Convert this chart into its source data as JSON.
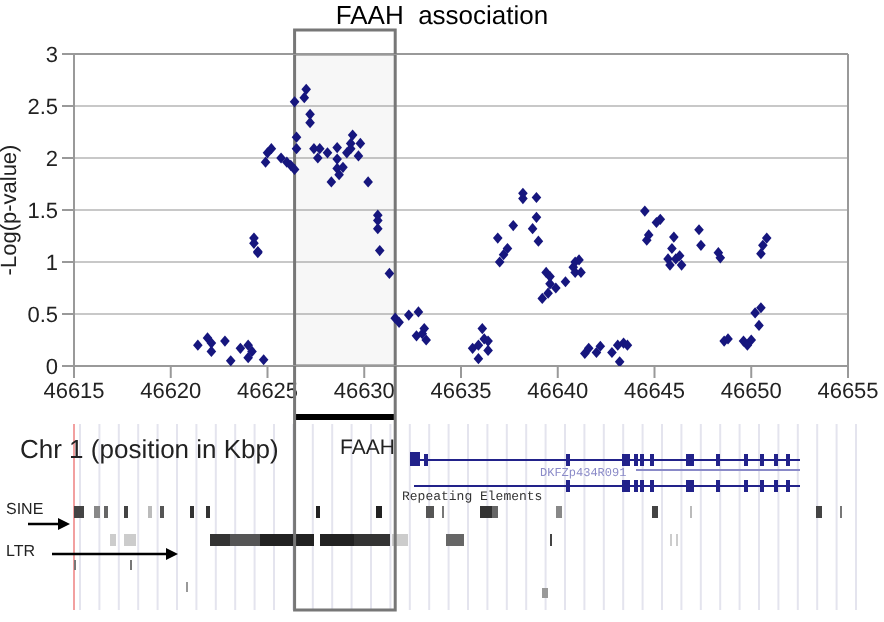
{
  "chart_data": {
    "type": "scatter",
    "title": "FAAH  association",
    "ylabel": "-Log(p-value)",
    "x": [
      46621.4,
      46621.9,
      46622.1,
      46622.1,
      46622.8,
      46623.1,
      46623.6,
      46624.0,
      46624.2,
      46624.0,
      46624.3,
      46624.3,
      46624.5,
      46624.5,
      46624.8,
      46624.9,
      46625.0,
      46625.2,
      46625.7,
      46626.0,
      46626.2,
      46626.4,
      46626.4,
      46626.5,
      46626.5,
      46626.9,
      46627.0,
      46627.2,
      46627.2,
      46627.4,
      46627.6,
      46627.7,
      46628.1,
      46628.3,
      46628.6,
      46628.6,
      46628.6,
      46628.7,
      46628.9,
      46629.1,
      46629.3,
      46629.4,
      46629.3,
      46629.7,
      46629.8,
      46630.2,
      46630.7,
      46630.7,
      46630.7,
      46630.8,
      46631.3,
      46631.6,
      46631.8,
      46632.3,
      46632.8,
      46632.7,
      46633.0,
      46633.1,
      46633.2,
      46635.6,
      46635.9,
      46635.9,
      46636.1,
      46636.2,
      46636.4,
      46636.4,
      46636.9,
      46637.0,
      46637.2,
      46637.4,
      46637.7,
      46638.2,
      46638.2,
      46638.7,
      46638.9,
      46638.9,
      46639.0,
      46639.2,
      46639.4,
      46639.5,
      46639.6,
      46639.6,
      46639.9,
      46640.4,
      46640.8,
      46640.9,
      46641.1,
      46640.9,
      46641.2,
      46641.4,
      46641.6,
      46642.0,
      46642.2,
      46642.8,
      46643.1,
      46643.2,
      46643.4,
      46643.6,
      46644.5,
      46644.6,
      46644.7,
      46645.1,
      46645.3,
      46645.7,
      46645.8,
      46645.9,
      46646.0,
      46646.1,
      46646.3,
      46646.4,
      46647.3,
      46647.4,
      46648.3,
      46648.4,
      46648.6,
      46648.8,
      46649.6,
      46649.8,
      46650.0,
      46650.2,
      46650.5,
      46650.4,
      46650.5,
      46650.6,
      46650.8
    ],
    "values": [
      0.2,
      0.27,
      0.22,
      0.14,
      0.24,
      0.05,
      0.17,
      0.2,
      0.14,
      0.08,
      1.23,
      1.18,
      1.1,
      1.09,
      0.06,
      1.96,
      2.05,
      2.09,
      2.0,
      1.96,
      1.93,
      1.89,
      2.54,
      2.2,
      2.09,
      2.58,
      2.66,
      2.42,
      2.34,
      2.09,
      2.0,
      2.09,
      2.05,
      1.77,
      2.1,
      1.99,
      1.9,
      1.84,
      1.91,
      2.05,
      2.14,
      2.22,
      2.09,
      2.02,
      2.14,
      1.77,
      1.45,
      1.4,
      1.32,
      1.11,
      0.89,
      0.46,
      0.42,
      0.49,
      0.52,
      0.29,
      0.31,
      0.36,
      0.25,
      0.17,
      0.2,
      0.07,
      0.36,
      0.26,
      0.24,
      0.15,
      1.23,
      1.0,
      1.07,
      1.13,
      1.35,
      1.61,
      1.66,
      1.32,
      1.43,
      1.62,
      1.2,
      0.65,
      0.9,
      0.7,
      0.79,
      0.86,
      0.75,
      0.81,
      0.95,
      1.0,
      1.02,
      0.9,
      0.9,
      0.12,
      0.17,
      0.13,
      0.19,
      0.13,
      0.2,
      0.04,
      0.22,
      0.2,
      1.49,
      1.21,
      1.26,
      1.38,
      1.41,
      1.03,
      0.97,
      1.13,
      1.24,
      1.03,
      1.06,
      0.97,
      1.31,
      1.16,
      1.09,
      1.04,
      0.24,
      0.26,
      0.24,
      0.2,
      0.25,
      0.51,
      0.56,
      0.39,
      1.08,
      1.16,
      1.23
    ],
    "color": "#16167e",
    "marker": "diamond",
    "xlim": [
      46615,
      46655
    ],
    "xticks": [
      46615,
      46620,
      46625,
      46630,
      46635,
      46640,
      46645,
      46650,
      46655
    ],
    "ylim": [
      0,
      3
    ],
    "yticks": [
      0,
      0.5,
      1,
      1.5,
      2,
      2.5,
      3
    ],
    "grid": "y",
    "bands": [
      {
        "axis": "x",
        "from": 46626.4,
        "to": 46631.6,
        "color": "#777777"
      }
    ],
    "annotations": [
      "Chr 1 (position in Kbp)",
      "FAAH",
      "DKFZp434R091",
      "Repeating Elements",
      "SINE",
      "LTR"
    ]
  }
}
